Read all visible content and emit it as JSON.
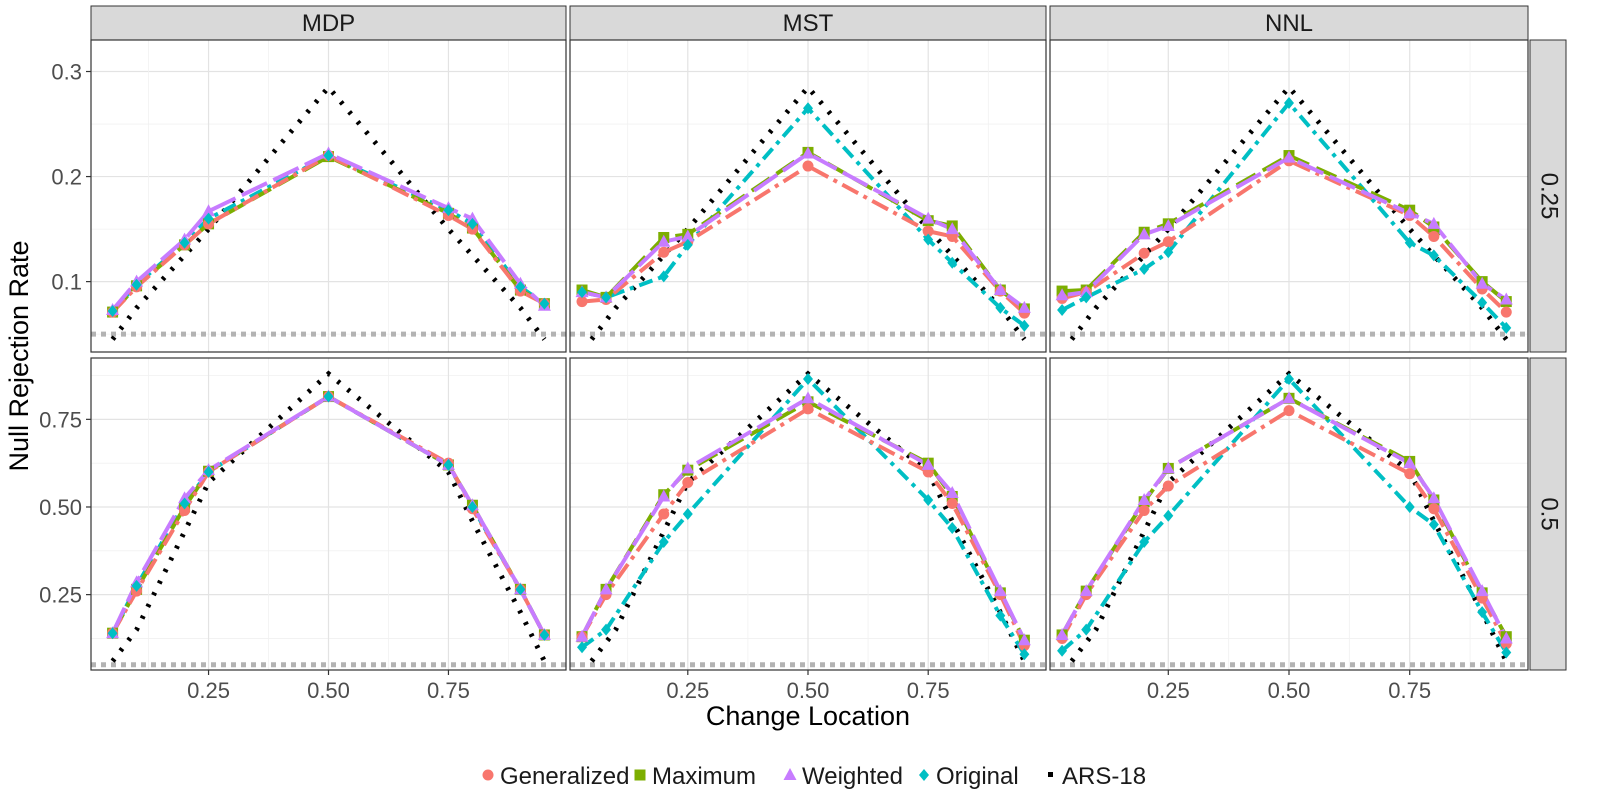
{
  "chart_data": {
    "type": "line",
    "xlabel": "Change Location",
    "ylabel": "Null Rejection Rate",
    "grid": true,
    "legend_position": "bottom",
    "columns": [
      "MDP",
      "MST",
      "NNL"
    ],
    "rows": [
      "0.25",
      "0.5"
    ],
    "x_ticks": [
      "0.25",
      "0.50",
      "0.75"
    ],
    "y_ticks": [
      [
        "0.1",
        "0.2",
        "0.3"
      ],
      [
        "0.25",
        "0.50",
        "0.75"
      ]
    ],
    "reference_level": 0.05,
    "legend": [
      {
        "key": "gen",
        "name": "Generalized",
        "color": "#F8766D",
        "marker": "circle"
      },
      {
        "key": "max",
        "name": "Maximum",
        "color": "#7CAE00",
        "marker": "square"
      },
      {
        "key": "wei",
        "name": "Weighted",
        "color": "#C77CFF",
        "marker": "triangle"
      },
      {
        "key": "ori",
        "name": "Original",
        "color": "#00BFC4",
        "marker": "diamond"
      },
      {
        "key": "ars",
        "name": "ARS-18",
        "color": "#000000",
        "marker": "none"
      }
    ],
    "panels": [
      {
        "row": 0,
        "col": 0,
        "ylim": [
          0.033,
          0.33
        ],
        "gen": [
          [
            0.05,
            0.071
          ],
          [
            0.1,
            0.095
          ],
          [
            0.2,
            0.135
          ],
          [
            0.25,
            0.155
          ],
          [
            0.5,
            0.22
          ],
          [
            0.75,
            0.163
          ],
          [
            0.8,
            0.15
          ],
          [
            0.9,
            0.091
          ],
          [
            0.95,
            0.079
          ]
        ],
        "max": [
          [
            0.05,
            0.071
          ],
          [
            0.1,
            0.096
          ],
          [
            0.2,
            0.135
          ],
          [
            0.25,
            0.155
          ],
          [
            0.5,
            0.219
          ],
          [
            0.75,
            0.165
          ],
          [
            0.8,
            0.151
          ],
          [
            0.9,
            0.092
          ],
          [
            0.95,
            0.079
          ]
        ],
        "wei": [
          [
            0.05,
            0.073
          ],
          [
            0.1,
            0.1
          ],
          [
            0.2,
            0.14
          ],
          [
            0.25,
            0.167
          ],
          [
            0.5,
            0.222
          ],
          [
            0.75,
            0.17
          ],
          [
            0.8,
            0.16
          ],
          [
            0.9,
            0.098
          ],
          [
            0.95,
            0.077
          ]
        ],
        "ori": [
          [
            0.05,
            0.072
          ],
          [
            0.1,
            0.097
          ],
          [
            0.2,
            0.137
          ],
          [
            0.25,
            0.16
          ],
          [
            0.5,
            0.22
          ],
          [
            0.75,
            0.168
          ],
          [
            0.8,
            0.155
          ],
          [
            0.9,
            0.095
          ],
          [
            0.95,
            0.079
          ]
        ],
        "ars": [
          [
            0.05,
            0.045
          ],
          [
            0.1,
            0.075
          ],
          [
            0.2,
            0.125
          ],
          [
            0.25,
            0.15
          ],
          [
            0.5,
            0.285
          ],
          [
            0.75,
            0.15
          ],
          [
            0.8,
            0.125
          ],
          [
            0.9,
            0.075
          ],
          [
            0.95,
            0.045
          ]
        ]
      },
      {
        "row": 0,
        "col": 1,
        "ylim": [
          0.033,
          0.33
        ],
        "gen": [
          [
            0.03,
            0.081
          ],
          [
            0.08,
            0.083
          ],
          [
            0.2,
            0.128
          ],
          [
            0.25,
            0.138
          ],
          [
            0.5,
            0.21
          ],
          [
            0.75,
            0.148
          ],
          [
            0.8,
            0.143
          ],
          [
            0.9,
            0.091
          ],
          [
            0.95,
            0.07
          ]
        ],
        "max": [
          [
            0.03,
            0.092
          ],
          [
            0.08,
            0.085
          ],
          [
            0.2,
            0.142
          ],
          [
            0.25,
            0.145
          ],
          [
            0.5,
            0.223
          ],
          [
            0.75,
            0.158
          ],
          [
            0.8,
            0.153
          ],
          [
            0.9,
            0.092
          ],
          [
            0.95,
            0.074
          ]
        ],
        "wei": [
          [
            0.03,
            0.09
          ],
          [
            0.08,
            0.085
          ],
          [
            0.2,
            0.138
          ],
          [
            0.25,
            0.143
          ],
          [
            0.5,
            0.222
          ],
          [
            0.75,
            0.16
          ],
          [
            0.8,
            0.15
          ],
          [
            0.9,
            0.092
          ],
          [
            0.95,
            0.075
          ]
        ],
        "ori": [
          [
            0.03,
            0.09
          ],
          [
            0.08,
            0.085
          ],
          [
            0.2,
            0.105
          ],
          [
            0.25,
            0.135
          ],
          [
            0.5,
            0.265
          ],
          [
            0.75,
            0.14
          ],
          [
            0.8,
            0.118
          ],
          [
            0.9,
            0.075
          ],
          [
            0.95,
            0.058
          ]
        ],
        "ars": [
          [
            0.05,
            0.045
          ],
          [
            0.1,
            0.075
          ],
          [
            0.2,
            0.125
          ],
          [
            0.25,
            0.15
          ],
          [
            0.5,
            0.285
          ],
          [
            0.75,
            0.15
          ],
          [
            0.8,
            0.125
          ],
          [
            0.9,
            0.075
          ],
          [
            0.95,
            0.045
          ]
        ]
      },
      {
        "row": 0,
        "col": 2,
        "ylim": [
          0.033,
          0.33
        ],
        "gen": [
          [
            0.03,
            0.084
          ],
          [
            0.08,
            0.09
          ],
          [
            0.2,
            0.127
          ],
          [
            0.25,
            0.138
          ],
          [
            0.5,
            0.215
          ],
          [
            0.75,
            0.163
          ],
          [
            0.8,
            0.143
          ],
          [
            0.9,
            0.093
          ],
          [
            0.95,
            0.071
          ]
        ],
        "max": [
          [
            0.03,
            0.091
          ],
          [
            0.08,
            0.092
          ],
          [
            0.2,
            0.147
          ],
          [
            0.25,
            0.155
          ],
          [
            0.5,
            0.22
          ],
          [
            0.75,
            0.168
          ],
          [
            0.8,
            0.152
          ],
          [
            0.9,
            0.1
          ],
          [
            0.95,
            0.081
          ]
        ],
        "wei": [
          [
            0.03,
            0.087
          ],
          [
            0.08,
            0.09
          ],
          [
            0.2,
            0.145
          ],
          [
            0.25,
            0.153
          ],
          [
            0.5,
            0.218
          ],
          [
            0.75,
            0.165
          ],
          [
            0.8,
            0.155
          ],
          [
            0.9,
            0.098
          ],
          [
            0.95,
            0.083
          ]
        ],
        "ori": [
          [
            0.03,
            0.073
          ],
          [
            0.08,
            0.085
          ],
          [
            0.2,
            0.112
          ],
          [
            0.25,
            0.128
          ],
          [
            0.5,
            0.27
          ],
          [
            0.75,
            0.137
          ],
          [
            0.8,
            0.125
          ],
          [
            0.9,
            0.08
          ],
          [
            0.95,
            0.056
          ]
        ],
        "ars": [
          [
            0.05,
            0.045
          ],
          [
            0.1,
            0.075
          ],
          [
            0.2,
            0.125
          ],
          [
            0.25,
            0.15
          ],
          [
            0.5,
            0.285
          ],
          [
            0.75,
            0.15
          ],
          [
            0.8,
            0.125
          ],
          [
            0.9,
            0.075
          ],
          [
            0.95,
            0.045
          ]
        ]
      },
      {
        "row": 1,
        "col": 0,
        "ylim": [
          0.035,
          0.925
        ],
        "gen": [
          [
            0.05,
            0.14
          ],
          [
            0.1,
            0.26
          ],
          [
            0.2,
            0.49
          ],
          [
            0.25,
            0.6
          ],
          [
            0.5,
            0.815
          ],
          [
            0.75,
            0.625
          ],
          [
            0.8,
            0.495
          ],
          [
            0.9,
            0.265
          ],
          [
            0.95,
            0.135
          ]
        ],
        "max": [
          [
            0.05,
            0.14
          ],
          [
            0.1,
            0.265
          ],
          [
            0.2,
            0.5
          ],
          [
            0.25,
            0.602
          ],
          [
            0.5,
            0.815
          ],
          [
            0.75,
            0.62
          ],
          [
            0.8,
            0.505
          ],
          [
            0.9,
            0.265
          ],
          [
            0.95,
            0.135
          ]
        ],
        "wei": [
          [
            0.05,
            0.14
          ],
          [
            0.1,
            0.285
          ],
          [
            0.2,
            0.525
          ],
          [
            0.25,
            0.605
          ],
          [
            0.5,
            0.815
          ],
          [
            0.75,
            0.62
          ],
          [
            0.8,
            0.505
          ],
          [
            0.9,
            0.265
          ],
          [
            0.95,
            0.135
          ]
        ],
        "ori": [
          [
            0.05,
            0.14
          ],
          [
            0.1,
            0.275
          ],
          [
            0.2,
            0.51
          ],
          [
            0.25,
            0.6
          ],
          [
            0.5,
            0.815
          ],
          [
            0.75,
            0.62
          ],
          [
            0.8,
            0.5
          ],
          [
            0.9,
            0.265
          ],
          [
            0.95,
            0.135
          ]
        ],
        "ars": [
          [
            0.05,
            0.06
          ],
          [
            0.1,
            0.15
          ],
          [
            0.2,
            0.43
          ],
          [
            0.25,
            0.57
          ],
          [
            0.5,
            0.88
          ],
          [
            0.75,
            0.6
          ],
          [
            0.8,
            0.46
          ],
          [
            0.9,
            0.2
          ],
          [
            0.95,
            0.06
          ]
        ]
      },
      {
        "row": 1,
        "col": 1,
        "ylim": [
          0.035,
          0.925
        ],
        "gen": [
          [
            0.03,
            0.13
          ],
          [
            0.08,
            0.25
          ],
          [
            0.2,
            0.48
          ],
          [
            0.25,
            0.57
          ],
          [
            0.5,
            0.78
          ],
          [
            0.75,
            0.6
          ],
          [
            0.8,
            0.51
          ],
          [
            0.9,
            0.25
          ],
          [
            0.95,
            0.105
          ]
        ],
        "max": [
          [
            0.03,
            0.13
          ],
          [
            0.08,
            0.265
          ],
          [
            0.2,
            0.535
          ],
          [
            0.25,
            0.605
          ],
          [
            0.5,
            0.8
          ],
          [
            0.75,
            0.625
          ],
          [
            0.8,
            0.53
          ],
          [
            0.9,
            0.255
          ],
          [
            0.95,
            0.12
          ]
        ],
        "wei": [
          [
            0.03,
            0.13
          ],
          [
            0.08,
            0.265
          ],
          [
            0.2,
            0.53
          ],
          [
            0.25,
            0.61
          ],
          [
            0.5,
            0.81
          ],
          [
            0.75,
            0.62
          ],
          [
            0.8,
            0.54
          ],
          [
            0.9,
            0.26
          ],
          [
            0.95,
            0.12
          ]
        ],
        "ori": [
          [
            0.03,
            0.1
          ],
          [
            0.08,
            0.15
          ],
          [
            0.2,
            0.4
          ],
          [
            0.25,
            0.48
          ],
          [
            0.5,
            0.865
          ],
          [
            0.75,
            0.52
          ],
          [
            0.8,
            0.44
          ],
          [
            0.9,
            0.19
          ],
          [
            0.95,
            0.08
          ]
        ],
        "ars": [
          [
            0.05,
            0.06
          ],
          [
            0.1,
            0.15
          ],
          [
            0.2,
            0.43
          ],
          [
            0.25,
            0.57
          ],
          [
            0.5,
            0.88
          ],
          [
            0.75,
            0.6
          ],
          [
            0.8,
            0.46
          ],
          [
            0.9,
            0.2
          ],
          [
            0.95,
            0.06
          ]
        ]
      },
      {
        "row": 1,
        "col": 2,
        "ylim": [
          0.035,
          0.925
        ],
        "gen": [
          [
            0.03,
            0.125
          ],
          [
            0.08,
            0.25
          ],
          [
            0.2,
            0.49
          ],
          [
            0.25,
            0.56
          ],
          [
            0.5,
            0.775
          ],
          [
            0.75,
            0.595
          ],
          [
            0.8,
            0.495
          ],
          [
            0.9,
            0.24
          ],
          [
            0.95,
            0.11
          ]
        ],
        "max": [
          [
            0.03,
            0.135
          ],
          [
            0.08,
            0.26
          ],
          [
            0.2,
            0.515
          ],
          [
            0.25,
            0.61
          ],
          [
            0.5,
            0.81
          ],
          [
            0.75,
            0.63
          ],
          [
            0.8,
            0.52
          ],
          [
            0.9,
            0.255
          ],
          [
            0.95,
            0.13
          ]
        ],
        "wei": [
          [
            0.03,
            0.135
          ],
          [
            0.08,
            0.26
          ],
          [
            0.2,
            0.52
          ],
          [
            0.25,
            0.61
          ],
          [
            0.5,
            0.81
          ],
          [
            0.75,
            0.625
          ],
          [
            0.8,
            0.525
          ],
          [
            0.9,
            0.26
          ],
          [
            0.95,
            0.125
          ]
        ],
        "ori": [
          [
            0.03,
            0.09
          ],
          [
            0.08,
            0.15
          ],
          [
            0.2,
            0.4
          ],
          [
            0.25,
            0.475
          ],
          [
            0.5,
            0.865
          ],
          [
            0.75,
            0.5
          ],
          [
            0.8,
            0.45
          ],
          [
            0.9,
            0.2
          ],
          [
            0.95,
            0.085
          ]
        ],
        "ars": [
          [
            0.05,
            0.06
          ],
          [
            0.1,
            0.15
          ],
          [
            0.2,
            0.43
          ],
          [
            0.25,
            0.57
          ],
          [
            0.5,
            0.88
          ],
          [
            0.75,
            0.6
          ],
          [
            0.8,
            0.46
          ],
          [
            0.9,
            0.2
          ],
          [
            0.95,
            0.06
          ]
        ]
      }
    ]
  }
}
